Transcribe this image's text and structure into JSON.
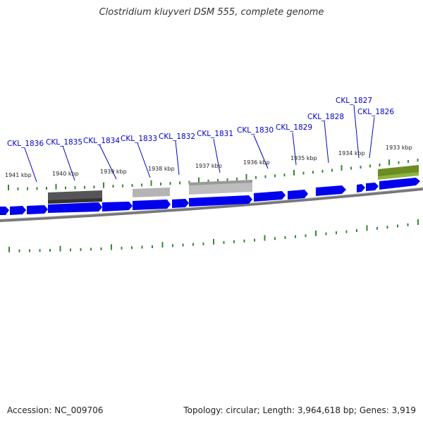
{
  "title": "Clostridium kluyveri DSM 555, complete genome",
  "footer": {
    "accession": "Accession: NC_009706",
    "summary": "Topology: circular; Length: 3,964,618 bp; Genes: 3,919"
  },
  "colors": {
    "gene_forward": "#0000ee",
    "gene_label": "#0000cc",
    "tick": "#338833",
    "backbone": "#888888",
    "feature_dark": "#555555",
    "feature_light": "#b8b8b8",
    "feature_green": "#6b8e23"
  },
  "kbp_labels": [
    "1941 kbp",
    "1940 kbp",
    "1939 kbp",
    "1938 kbp",
    "1937 kbp",
    "1936 kbp",
    "1935 kbp",
    "1934 kbp",
    "1933 kbp"
  ],
  "gene_labels": [
    "CKL_1836",
    "CKL_1835",
    "CKL_1834",
    "CKL_1833",
    "CKL_1832",
    "CKL_1831",
    "CKL_1830",
    "CKL_1829",
    "CKL_1828",
    "CKL_1827",
    "CKL_1826"
  ]
}
